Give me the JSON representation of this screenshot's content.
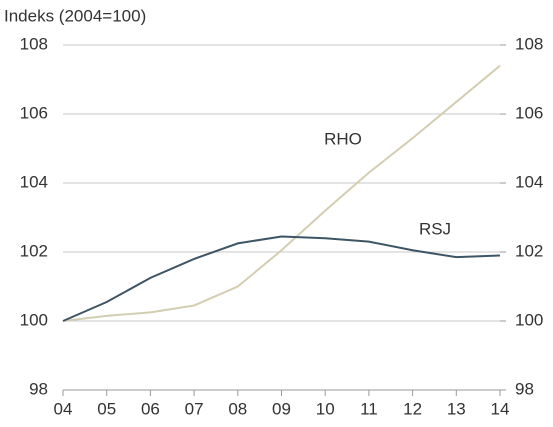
{
  "chart_data": {
    "type": "line",
    "title": "Indeks (2004=100)",
    "categories": [
      "04",
      "05",
      "06",
      "07",
      "08",
      "09",
      "10",
      "11",
      "12",
      "13",
      "14"
    ],
    "series": [
      {
        "name": "RHO",
        "color": "#d3ceb2",
        "values": [
          100,
          100.15,
          100.25,
          100.45,
          101.0,
          102.05,
          103.2,
          104.3,
          105.3,
          106.35,
          107.4
        ]
      },
      {
        "name": "RSJ",
        "color": "#3e5566",
        "values": [
          100,
          100.55,
          101.25,
          101.8,
          102.25,
          102.45,
          102.4,
          102.3,
          102.05,
          101.85,
          101.9
        ]
      }
    ],
    "ylim": [
      98,
      108
    ],
    "yticks": [
      98,
      100,
      102,
      104,
      106,
      108
    ],
    "y2lim": [
      98,
      108
    ],
    "y2ticks": [
      98,
      100,
      102,
      104,
      106,
      108
    ],
    "grid": true
  }
}
